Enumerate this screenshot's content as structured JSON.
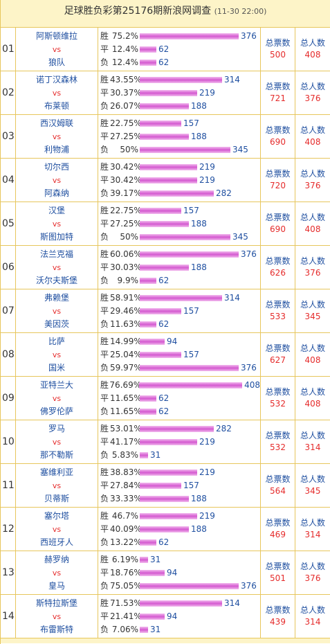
{
  "header": {
    "title": "足球胜负彩第25176期新浪网调查",
    "subtitle": "(11-30 22:00)"
  },
  "labels": {
    "win": "胜",
    "draw": "平",
    "loss": "负",
    "vs": "vs",
    "total_votes": "总票数",
    "total_people": "总人数"
  },
  "matches": [
    {
      "no": "01",
      "home": "阿斯顿维拉",
      "away": "狼队",
      "win": {
        "pct": "75.2%",
        "count": "376"
      },
      "draw": {
        "pct": "12.4%",
        "count": "62"
      },
      "loss": {
        "pct": "12.4%",
        "count": "62"
      },
      "total_votes": "500",
      "total_people": "408"
    },
    {
      "no": "02",
      "home": "诺丁汉森林",
      "away": "布莱顿",
      "win": {
        "pct": "43.55%",
        "count": "314"
      },
      "draw": {
        "pct": "30.37%",
        "count": "219"
      },
      "loss": {
        "pct": "26.07%",
        "count": "188"
      },
      "total_votes": "721",
      "total_people": "376"
    },
    {
      "no": "03",
      "home": "西汉姆联",
      "away": "利物浦",
      "win": {
        "pct": "22.75%",
        "count": "157"
      },
      "draw": {
        "pct": "27.25%",
        "count": "188"
      },
      "loss": {
        "pct": "50%",
        "count": "345"
      },
      "total_votes": "690",
      "total_people": "408"
    },
    {
      "no": "04",
      "home": "切尔西",
      "away": "阿森纳",
      "win": {
        "pct": "30.42%",
        "count": "219"
      },
      "draw": {
        "pct": "30.42%",
        "count": "219"
      },
      "loss": {
        "pct": "39.17%",
        "count": "282"
      },
      "total_votes": "720",
      "total_people": "376"
    },
    {
      "no": "05",
      "home": "汉堡",
      "away": "斯图加特",
      "win": {
        "pct": "22.75%",
        "count": "157"
      },
      "draw": {
        "pct": "27.25%",
        "count": "188"
      },
      "loss": {
        "pct": "50%",
        "count": "345"
      },
      "total_votes": "690",
      "total_people": "408"
    },
    {
      "no": "06",
      "home": "法兰克福",
      "away": "沃尔夫斯堡",
      "win": {
        "pct": "60.06%",
        "count": "376"
      },
      "draw": {
        "pct": "30.03%",
        "count": "188"
      },
      "loss": {
        "pct": "9.9%",
        "count": "62"
      },
      "total_votes": "626",
      "total_people": "376"
    },
    {
      "no": "07",
      "home": "弗赖堡",
      "away": "美因茨",
      "win": {
        "pct": "58.91%",
        "count": "314"
      },
      "draw": {
        "pct": "29.46%",
        "count": "157"
      },
      "loss": {
        "pct": "11.63%",
        "count": "62"
      },
      "total_votes": "533",
      "total_people": "345"
    },
    {
      "no": "08",
      "home": "比萨",
      "away": "国米",
      "win": {
        "pct": "14.99%",
        "count": "94"
      },
      "draw": {
        "pct": "25.04%",
        "count": "157"
      },
      "loss": {
        "pct": "59.97%",
        "count": "376"
      },
      "total_votes": "627",
      "total_people": "408"
    },
    {
      "no": "09",
      "home": "亚特兰大",
      "away": "佛罗伦萨",
      "win": {
        "pct": "76.69%",
        "count": "408"
      },
      "draw": {
        "pct": "11.65%",
        "count": "62"
      },
      "loss": {
        "pct": "11.65%",
        "count": "62"
      },
      "total_votes": "532",
      "total_people": "408"
    },
    {
      "no": "10",
      "home": "罗马",
      "away": "那不勒斯",
      "win": {
        "pct": "53.01%",
        "count": "282"
      },
      "draw": {
        "pct": "41.17%",
        "count": "219"
      },
      "loss": {
        "pct": "5.83%",
        "count": "31"
      },
      "total_votes": "532",
      "total_people": "314"
    },
    {
      "no": "11",
      "home": "塞维利亚",
      "away": "贝蒂斯",
      "win": {
        "pct": "38.83%",
        "count": "219"
      },
      "draw": {
        "pct": "27.84%",
        "count": "157"
      },
      "loss": {
        "pct": "33.33%",
        "count": "188"
      },
      "total_votes": "564",
      "total_people": "345"
    },
    {
      "no": "12",
      "home": "塞尔塔",
      "away": "西班牙人",
      "win": {
        "pct": "46.7%",
        "count": "219"
      },
      "draw": {
        "pct": "40.09%",
        "count": "188"
      },
      "loss": {
        "pct": "13.22%",
        "count": "62"
      },
      "total_votes": "469",
      "total_people": "314"
    },
    {
      "no": "13",
      "home": "赫罗纳",
      "away": "皇马",
      "win": {
        "pct": "6.19%",
        "count": "31"
      },
      "draw": {
        "pct": "18.76%",
        "count": "94"
      },
      "loss": {
        "pct": "75.05%",
        "count": "376"
      },
      "total_votes": "501",
      "total_people": "376"
    },
    {
      "no": "14",
      "home": "斯特拉斯堡",
      "away": "布雷斯特",
      "win": {
        "pct": "71.53%",
        "count": "314"
      },
      "draw": {
        "pct": "21.41%",
        "count": "94"
      },
      "loss": {
        "pct": "7.06%",
        "count": "31"
      },
      "total_votes": "439",
      "total_people": "314"
    }
  ]
}
